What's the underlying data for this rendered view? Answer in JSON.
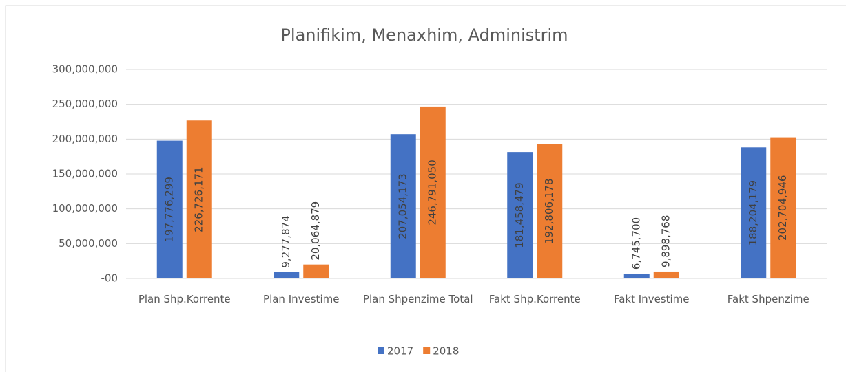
{
  "chart_data": {
    "type": "bar",
    "title": "Planifikim, Menaxhim, Administrim",
    "categories": [
      "Plan Shp.Korrente",
      "Plan Investime",
      "Plan  Shpenzime Total",
      "Fakt Shp.Korrente",
      "Fakt Investime",
      "Fakt Shpenzime"
    ],
    "series": [
      {
        "name": "2017",
        "color": "#4472c4",
        "values": [
          197776299,
          9277874,
          207054173,
          181458479,
          6745700,
          188204179
        ],
        "value_labels": [
          "197,776,299",
          "9,277,874",
          "207,054,173",
          "181,458,479",
          "6,745,700",
          "188,204,179"
        ]
      },
      {
        "name": "2018",
        "color": "#ed7d31",
        "values": [
          226726171,
          20064879,
          246791050,
          192806178,
          9898768,
          202704946
        ],
        "value_labels": [
          "226,726,171",
          "20,064,879",
          "246,791,050",
          "192,806,178",
          "9,898,768",
          "202,704,946"
        ]
      }
    ],
    "ylim": [
      0,
      300000000
    ],
    "yticks": [
      {
        "value": 0,
        "label": "-00"
      },
      {
        "value": 50000000,
        "label": "50,000,000"
      },
      {
        "value": 100000000,
        "label": "100,000,000"
      },
      {
        "value": 150000000,
        "label": "150,000,000"
      },
      {
        "value": 200000000,
        "label": "200,000,000"
      },
      {
        "value": 250000000,
        "label": "250,000,000"
      },
      {
        "value": 300000000,
        "label": "300,000,000"
      }
    ],
    "grid": true,
    "legend": "bottom"
  }
}
